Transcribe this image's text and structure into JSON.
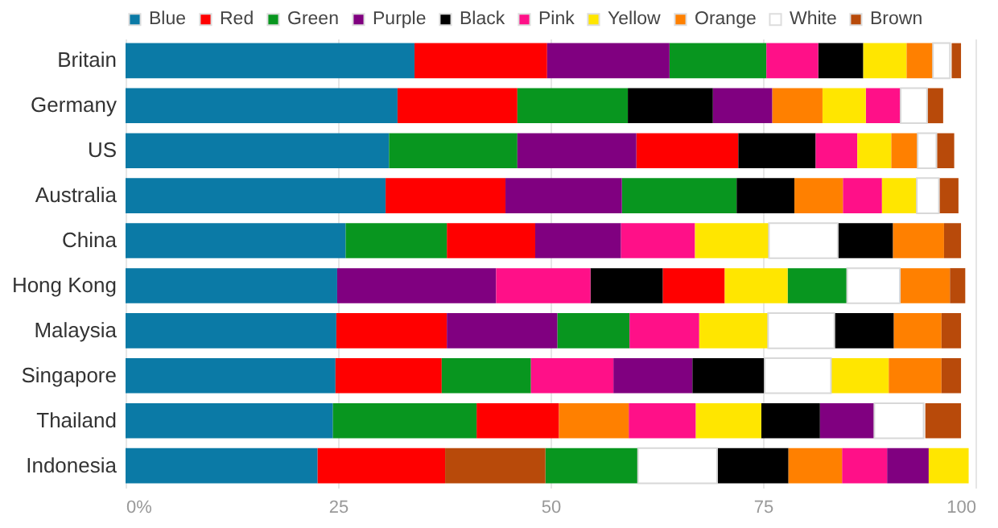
{
  "chart_data": {
    "type": "bar",
    "orientation": "horizontal",
    "categories": [
      "Britain",
      "Germany",
      "US",
      "Australia",
      "China",
      "Hong Kong",
      "Malaysia",
      "Singapore",
      "Thailand",
      "Indonesia"
    ],
    "series": [
      {
        "name": "Blue",
        "color": "#0b7aa6",
        "base": [
          0,
          0,
          0,
          0,
          0,
          0,
          0,
          0,
          0,
          0
        ],
        "values": [
          34.0,
          32.0,
          31.0,
          30.6,
          25.9,
          24.9,
          24.8,
          24.7,
          24.4,
          22.6
        ]
      },
      {
        "name": "Red",
        "color": "#ff0000",
        "base": [
          34.0,
          32.0,
          60.1,
          30.6,
          37.8,
          63.2,
          24.8,
          24.7,
          41.3,
          22.6
        ],
        "values": [
          15.6,
          14.1,
          12.0,
          14.1,
          10.4,
          7.3,
          13.0,
          12.5,
          9.7,
          15.0
        ]
      },
      {
        "name": "Green",
        "color": "#08961f",
        "base": [
          64.0,
          46.1,
          31.0,
          58.4,
          25.9,
          77.9,
          50.8,
          37.2,
          24.4,
          49.4
        ],
        "values": [
          11.4,
          13.0,
          15.1,
          13.5,
          11.9,
          7.0,
          8.5,
          10.5,
          16.9,
          10.9
        ]
      },
      {
        "name": "Purple",
        "color": "#800080",
        "base": [
          49.6,
          69.1,
          46.1,
          44.7,
          48.2,
          24.9,
          37.8,
          57.4,
          81.7,
          89.6
        ],
        "values": [
          14.4,
          7.0,
          14.0,
          13.7,
          10.1,
          18.7,
          13.0,
          9.3,
          6.4,
          4.9
        ]
      },
      {
        "name": "Black",
        "color": "#000000",
        "base": [
          81.5,
          59.1,
          72.1,
          71.9,
          83.8,
          54.7,
          83.4,
          66.7,
          74.8,
          69.6
        ],
        "values": [
          5.3,
          10.0,
          9.1,
          6.8,
          6.5,
          8.5,
          7.0,
          8.5,
          6.9,
          8.4
        ]
      },
      {
        "name": "Pink",
        "color": "#ff1088",
        "base": [
          75.4,
          87.1,
          81.2,
          84.4,
          58.3,
          43.6,
          59.3,
          47.7,
          59.2,
          84.3
        ],
        "values": [
          6.1,
          4.1,
          4.9,
          4.6,
          8.7,
          11.1,
          8.2,
          9.7,
          7.9,
          5.3
        ]
      },
      {
        "name": "Yellow",
        "color": "#ffe600",
        "base": [
          86.8,
          82.0,
          86.1,
          89.0,
          67.0,
          70.5,
          67.5,
          83.0,
          67.1,
          94.5
        ],
        "values": [
          5.1,
          5.1,
          4.0,
          4.1,
          8.7,
          7.4,
          8.1,
          6.8,
          7.7,
          4.7
        ]
      },
      {
        "name": "Orange",
        "color": "#ff8000",
        "base": [
          91.9,
          76.1,
          90.1,
          78.7,
          90.3,
          91.1,
          90.4,
          89.8,
          51.0,
          78.0
        ],
        "values": [
          3.1,
          5.9,
          3.1,
          5.7,
          6.0,
          5.9,
          5.6,
          6.2,
          8.2,
          6.3
        ]
      },
      {
        "name": "White",
        "color": "#ffffff",
        "base": [
          95.0,
          91.2,
          93.2,
          93.1,
          75.7,
          84.9,
          75.6,
          75.2,
          88.1,
          60.3
        ],
        "values": [
          2.0,
          3.1,
          2.2,
          2.6,
          8.1,
          6.2,
          7.8,
          7.8,
          5.8,
          9.3
        ]
      },
      {
        "name": "Brown",
        "color": "#b84a0a",
        "base": [
          97.2,
          94.4,
          95.5,
          95.8,
          96.3,
          97.0,
          96.0,
          96.0,
          94.1,
          37.6
        ],
        "values": [
          1.1,
          1.8,
          2.0,
          2.2,
          2.0,
          1.8,
          2.3,
          2.3,
          4.2,
          11.8
        ]
      }
    ],
    "xlim": [
      0,
      100
    ],
    "xticks": [
      {
        "value": 0,
        "label": "0%"
      },
      25,
      50,
      75,
      100
    ],
    "grid": "x",
    "legend": "top"
  }
}
